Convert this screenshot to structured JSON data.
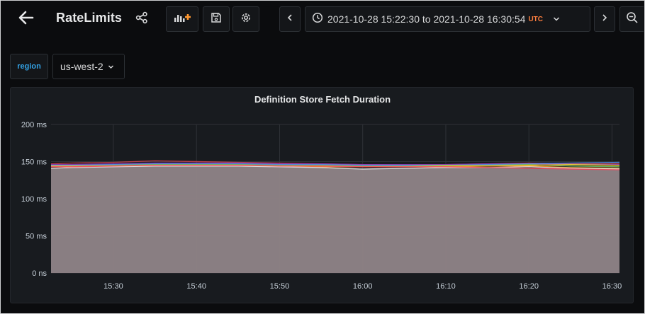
{
  "header": {
    "title": "RateLimits",
    "time_range": {
      "text": "2021-10-28 15:22:30 to 2021-10-28 16:30:54",
      "timezone": "UTC"
    }
  },
  "icons": {
    "back": "arrow-left-icon",
    "share": "share-icon",
    "add_panel": "add-panel-icon",
    "save": "save-icon",
    "settings": "gear-icon",
    "prev": "chevron-left-icon",
    "clock": "clock-icon",
    "range_dropdown": "chevron-down-icon",
    "next": "chevron-right-icon",
    "zoom_out": "zoom-out-icon"
  },
  "variables": {
    "region": {
      "label": "region",
      "value": "us-west-2"
    }
  },
  "colors": {
    "background": "#0b0c0e",
    "panel": "#181b1f",
    "timezone": "#ff7f3f",
    "variable_label": "#33a2e5",
    "fill": "#8d8285"
  },
  "panel": {
    "title": "Definition Store Fetch Duration",
    "chart_data": {
      "type": "area",
      "x": [
        "15:22:30",
        "15:25",
        "15:30",
        "15:35",
        "15:40",
        "15:45",
        "15:50",
        "15:55",
        "16:00",
        "16:05",
        "16:10",
        "16:15",
        "16:20",
        "16:25",
        "16:30:54"
      ],
      "x_ticks": [
        "15:30",
        "15:40",
        "15:50",
        "16:00",
        "16:10",
        "16:20",
        "16:30"
      ],
      "y_ticks": [
        "0 ns",
        "50 ms",
        "100 ms",
        "150 ms",
        "200 ms"
      ],
      "ylim": [
        0,
        200
      ],
      "y_unit": "ms",
      "grid": true,
      "series": [
        {
          "color": "#c6404c",
          "values": [
            147,
            148,
            149,
            151,
            150,
            149,
            148,
            147,
            146,
            145,
            146,
            147,
            148,
            147,
            147
          ]
        },
        {
          "color": "#8f3bb8",
          "values": [
            146,
            146,
            147,
            148,
            148,
            148,
            147,
            147,
            146,
            146,
            146,
            147,
            147,
            146,
            146
          ]
        },
        {
          "color": "#5794f2",
          "values": [
            145,
            145,
            146,
            147,
            147,
            147,
            146,
            146,
            145,
            145,
            145,
            146,
            147,
            148,
            149
          ]
        },
        {
          "color": "#73bf69",
          "values": [
            144,
            144,
            145,
            146,
            146,
            146,
            145,
            145,
            144,
            144,
            145,
            145,
            146,
            144,
            143
          ]
        },
        {
          "color": "#fade2a",
          "values": [
            144,
            144,
            144,
            145,
            145,
            145,
            144,
            144,
            143,
            143,
            144,
            144,
            145,
            146,
            145
          ]
        },
        {
          "color": "#ff9830",
          "values": [
            143,
            143,
            144,
            145,
            145,
            145,
            144,
            143,
            143,
            143,
            143,
            144,
            144,
            142,
            141
          ]
        },
        {
          "color": "#e8e8e8",
          "values": [
            141,
            142,
            143,
            144,
            144,
            144,
            143,
            142,
            140,
            141,
            142,
            142,
            143,
            141,
            140
          ]
        },
        {
          "color": "#f2495c",
          "values": [
            143,
            143,
            144,
            145,
            145,
            145,
            144,
            144,
            143,
            143,
            143,
            142,
            141,
            140,
            139
          ]
        }
      ]
    }
  }
}
